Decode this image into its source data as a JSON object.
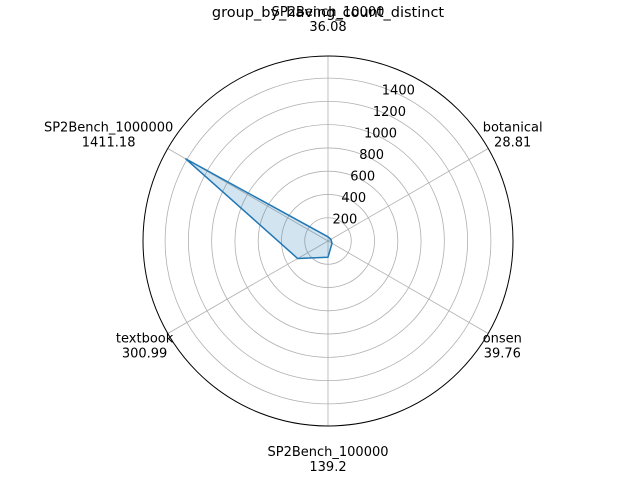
{
  "chart_data": {
    "type": "radar",
    "title": "group_by_having_count_distinct",
    "categories": [
      "SP2Bench_10000",
      "botanical",
      "onsen",
      "SP2Bench_100000",
      "textbook",
      "SP2Bench_1000000"
    ],
    "value_labels": [
      "36.08",
      "28.81",
      "39.76",
      "139.2",
      "300.99",
      "1411.18"
    ],
    "series": [
      {
        "values": [
          36.08,
          28.81,
          39.76,
          139.2,
          300.99,
          1411.18
        ]
      }
    ],
    "radial_ticks": [
      200,
      400,
      600,
      800,
      1000,
      1200,
      1400
    ],
    "rlim": [
      0,
      1590
    ],
    "grid": true,
    "colors": {
      "line": "#1f77b4",
      "fill": "#1f77b4",
      "grid": "#b0b0b0",
      "frame": "#000000"
    }
  }
}
